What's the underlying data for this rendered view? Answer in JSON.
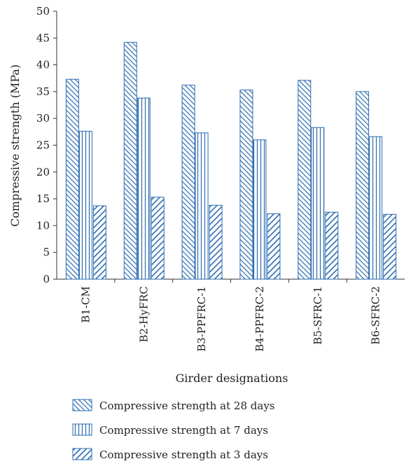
{
  "chart_data": {
    "type": "bar",
    "categories": [
      "B1-CM",
      "B2-HyFRC",
      "B3-PPFRC-1",
      "B4-PPFRC-2",
      "B5-SFRC-1",
      "B6-SFRC-2"
    ],
    "series": [
      {
        "name": "Compressive strength at 28 days",
        "values": [
          37.3,
          44.2,
          36.2,
          35.3,
          37.1,
          35.0
        ],
        "pattern": "diag-dense"
      },
      {
        "name": "Compressive strength at 7 days",
        "values": [
          27.6,
          33.8,
          27.3,
          26.0,
          28.3,
          26.6
        ],
        "pattern": "vertical"
      },
      {
        "name": "Compressive strength at 3 days",
        "values": [
          13.7,
          15.3,
          13.8,
          12.2,
          12.5,
          12.1
        ],
        "pattern": "diag-wide"
      }
    ],
    "xlabel": "Girder designations",
    "ylabel": "Compressive strength (MPa)",
    "ylim": [
      0,
      50
    ],
    "yticks": [
      0,
      5,
      10,
      15,
      20,
      25,
      30,
      35,
      40,
      45,
      50
    ],
    "grid": false,
    "legend_position": "bottom"
  },
  "colors": {
    "bar_stroke": "#2b6cb0",
    "axis": "#333333"
  }
}
